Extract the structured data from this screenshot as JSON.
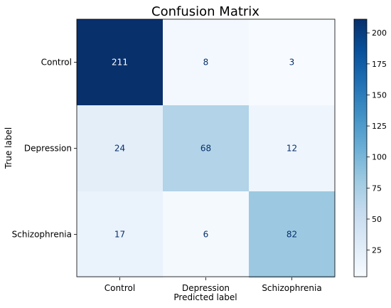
{
  "chart_data": {
    "type": "heatmap",
    "title": "Confusion Matrix",
    "xlabel": "Predicted label",
    "ylabel": "True label",
    "row_labels": [
      "Control",
      "Depression",
      "Schizophrenia"
    ],
    "col_labels": [
      "Control",
      "Depression",
      "Schizophrenia"
    ],
    "values": [
      [
        211,
        8,
        3
      ],
      [
        24,
        68,
        12
      ],
      [
        17,
        6,
        82
      ]
    ],
    "colormap": "Blues",
    "color_range": [
      3,
      211
    ],
    "colorbar_ticks": [
      25,
      50,
      75,
      100,
      125,
      150,
      175,
      200
    ],
    "cell_text_colors": {
      "light": "#ffffff",
      "dark": "#08306b"
    },
    "grid": false
  }
}
